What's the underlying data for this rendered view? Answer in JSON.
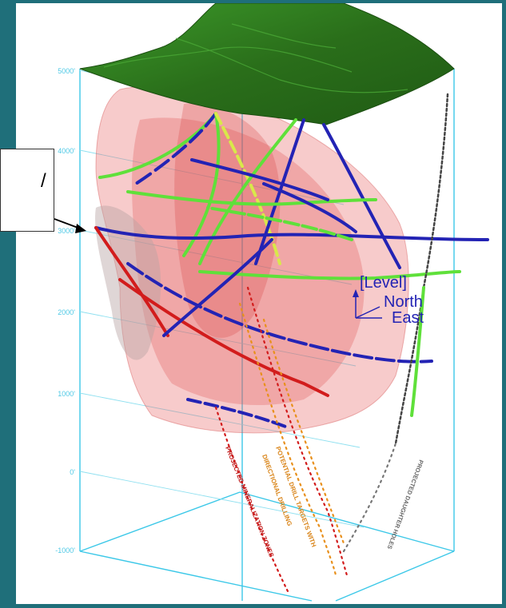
{
  "axis": {
    "elevation_ticks": [
      "5000'",
      "4000'",
      "3000'",
      "2000'",
      "1000'",
      "0'",
      "-1000'"
    ]
  },
  "orientation": {
    "level_label": "[Level]",
    "north_label": "North",
    "east_label": "East"
  },
  "annotations": {
    "mineralization": "PROJECTED MINERALIZATION ZONES",
    "directional": "DIRECTIONAL DRILLING",
    "targets": "POTENTIAL DRILL TARGETS WITH",
    "daughter": "PROJECTED DAUGHTER HOLES"
  },
  "callout": {
    "mark": "/"
  },
  "colors": {
    "frame": "#3cc8e8",
    "terrain": "#2f7d1f",
    "orebody": "#e86a6a",
    "hole_red": "#d21c1c",
    "hole_blue": "#2323b4",
    "hole_green": "#5fe03a",
    "hole_yellow": "#d9e84a",
    "orange_dots": "#e8901c",
    "gray_dots": "#777777"
  }
}
